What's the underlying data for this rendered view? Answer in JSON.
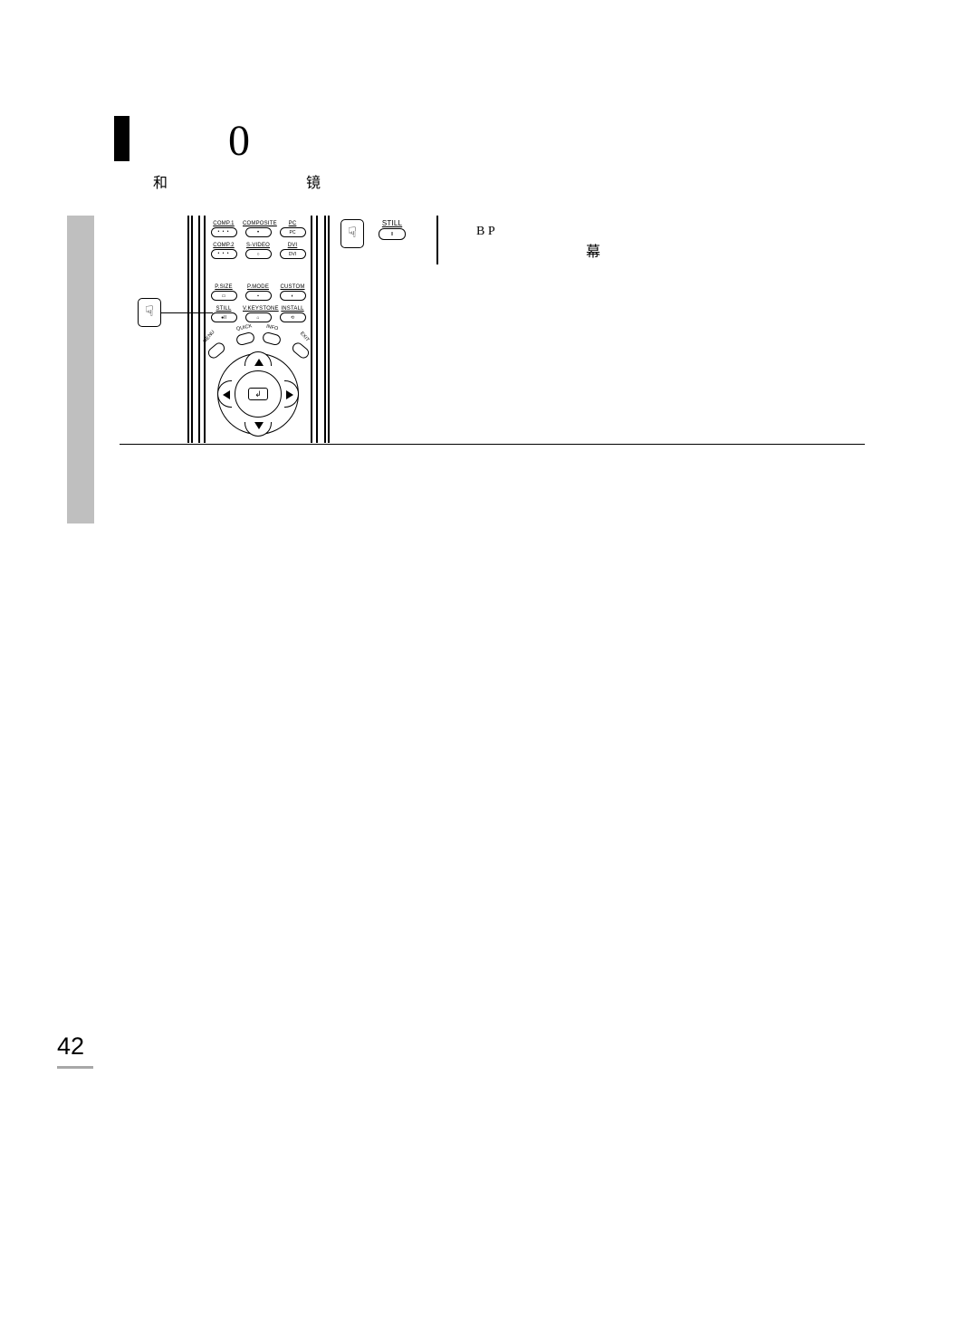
{
  "page_number": "42",
  "heading": {
    "zero": "0",
    "he": "和",
    "jing": "镜"
  },
  "side_text": {
    "bp": "B P",
    "mu": "幕"
  },
  "remote": {
    "row1": {
      "c1": "COMP.1",
      "c2": "COMPOSITE",
      "c3": "PC"
    },
    "row2": {
      "c1": "COMP.2",
      "c2": "S-VIDEO",
      "c3": "DVI"
    },
    "row3": {
      "c1": "P.SIZE",
      "c2": "P.MODE",
      "c3": "CUSTOM"
    },
    "row4": {
      "c1": "STILL",
      "c2": "V.KEYSTONE",
      "c3": "INSTALL"
    },
    "arc": {
      "menu": "MENU",
      "quick": "QUICK",
      "info": "INFO",
      "exit": "EXIT"
    },
    "pill_text": {
      "pc": "PC",
      "dvi": "DVI"
    },
    "center": "↲"
  },
  "still_callout": {
    "label": "STILL",
    "glyph": "II"
  },
  "hand_glyph": "☟",
  "colors": {
    "side_tab": "#bfbfbf",
    "underline": "#a8a8a8",
    "line": "#000000",
    "bg": "#ffffff"
  }
}
